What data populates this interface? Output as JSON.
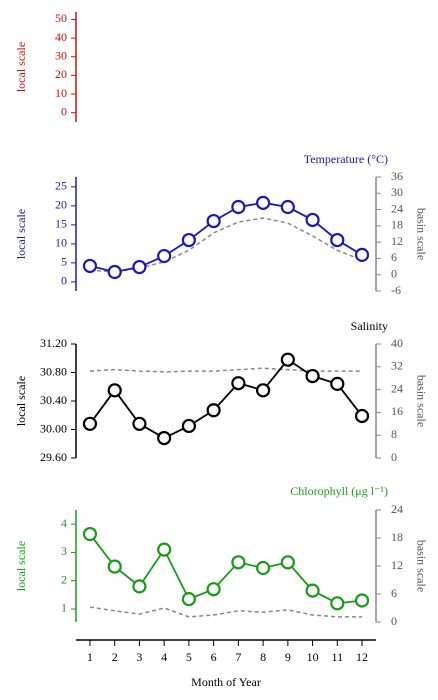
{
  "chart_data": [
    {
      "type": "line",
      "ylabel": "local scale",
      "color": "#cc1111",
      "ylim": [
        -5,
        54
      ],
      "yticks": [
        0,
        10,
        20,
        30,
        40,
        50
      ]
    },
    {
      "type": "line",
      "title": "Temperature (°C)",
      "ylabel": "local scale",
      "y2label": "basin scale",
      "color": "#1a1ab4",
      "x": [
        1,
        2,
        3,
        4,
        5,
        6,
        7,
        8,
        9,
        10,
        11,
        12
      ],
      "xlim": [
        0.5,
        12.5
      ],
      "ylim": [
        -2.4,
        27.6
      ],
      "yticks": [
        0,
        5,
        10,
        15,
        20,
        25
      ],
      "y2lim": [
        -6,
        36
      ],
      "y2ticks": [
        -6,
        0,
        6,
        12,
        18,
        24,
        30,
        36
      ],
      "series": [
        {
          "color": "#1a1ab4",
          "style": "solid",
          "marker": "circle",
          "values": [
            4.2,
            2.6,
            3.9,
            6.8,
            11,
            16,
            19.7,
            20.8,
            19.7,
            16.3,
            11,
            7.1
          ]
        },
        {
          "axis": "y2",
          "color": "#888888",
          "style": "dashed",
          "values": [
            1.7,
            1,
            2.5,
            4.7,
            9,
            15.4,
            19.4,
            20.9,
            19,
            14.3,
            9,
            5.4
          ]
        }
      ]
    },
    {
      "type": "line",
      "title": "Salinity",
      "ylabel": "local scale",
      "y2label": "basin scale",
      "color": "#000000",
      "x": [
        1,
        2,
        3,
        4,
        5,
        6,
        7,
        8,
        9,
        10,
        11,
        12
      ],
      "xlim": [
        0.5,
        12.5
      ],
      "ylim": [
        29.6,
        31.2
      ],
      "yticks": [
        {
          "value": 29.6,
          "label": "29.60"
        },
        {
          "value": 30,
          "label": "30.00"
        },
        {
          "value": 30.4,
          "label": "30.40"
        },
        {
          "value": 30.8,
          "label": "30.80"
        },
        {
          "value": 31.2,
          "label": "31.20"
        }
      ],
      "y2lim": [
        0,
        40
      ],
      "y2ticks": [
        0,
        8,
        16,
        24,
        32,
        40
      ],
      "series": [
        {
          "color": "#000000",
          "style": "solid",
          "marker": "circle",
          "values": [
            30.08,
            30.55,
            30.08,
            29.88,
            30.05,
            30.27,
            30.65,
            30.55,
            30.98,
            30.75,
            30.64,
            30.19
          ]
        },
        {
          "axis": "y2",
          "color": "#888888",
          "style": "dashed",
          "values": [
            30.5,
            31,
            30.5,
            30.2,
            30.5,
            30.5,
            31,
            31.5,
            31,
            30.5,
            30.5,
            30.5
          ]
        }
      ]
    },
    {
      "type": "line",
      "title": "Chlorophyll (μg l⁻¹)",
      "ylabel": "local scale",
      "y2label": "basin scale",
      "color": "#1a9a1a",
      "x": [
        1,
        2,
        3,
        4,
        5,
        6,
        7,
        8,
        9,
        10,
        11,
        12
      ],
      "xlim": [
        0.5,
        12.5
      ],
      "xticks": [
        1,
        2,
        3,
        4,
        5,
        6,
        7,
        8,
        9,
        10,
        11,
        12
      ],
      "xlabel": "Month of Year",
      "ylim": [
        0.54,
        4.5
      ],
      "yticks": [
        1,
        2,
        3,
        4
      ],
      "y2lim": [
        0,
        24
      ],
      "y2ticks": [
        0,
        6,
        12,
        18,
        24
      ],
      "series": [
        {
          "color": "#1a9a1a",
          "style": "solid",
          "marker": "circle",
          "values": [
            3.65,
            2.5,
            1.8,
            3.1,
            1.35,
            1.7,
            2.65,
            2.45,
            2.65,
            1.65,
            1.2,
            1.3
          ]
        },
        {
          "axis": "y2",
          "color": "#888888",
          "style": "dashed",
          "values": [
            3.2,
            2.4,
            1.7,
            3,
            1.1,
            1.5,
            2.4,
            2.1,
            2.6,
            1.5,
            1.1,
            1.1
          ]
        }
      ]
    }
  ]
}
